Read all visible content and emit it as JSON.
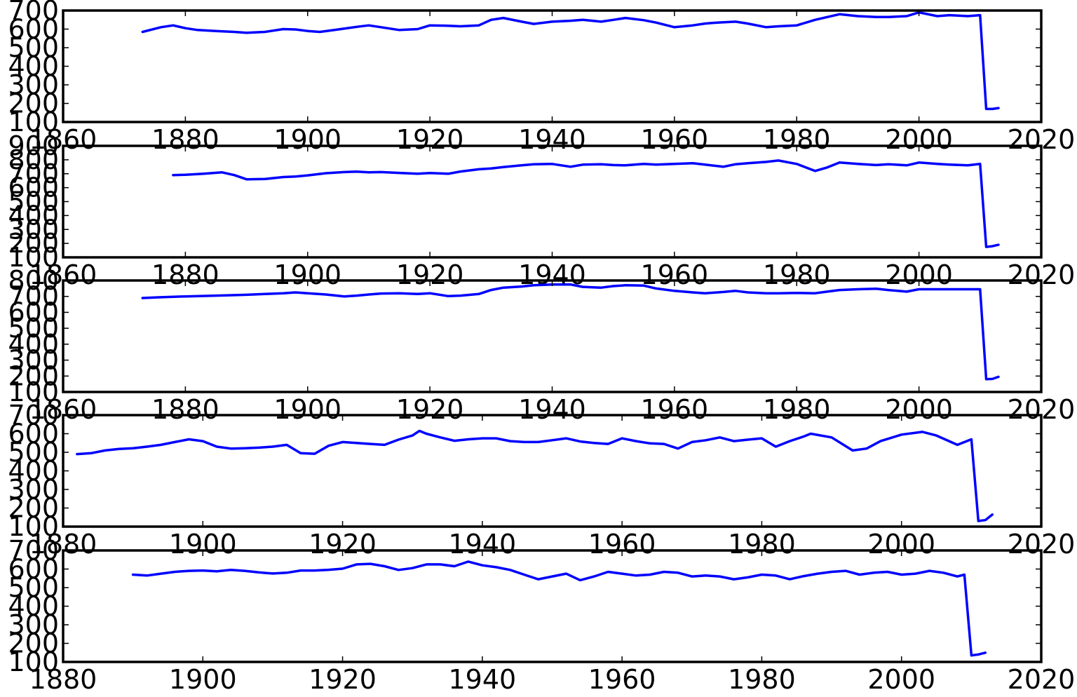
{
  "figure": {
    "background": "#ffffff"
  },
  "chart_data": [
    {
      "type": "line",
      "title": "",
      "xlabel": "",
      "ylabel": "",
      "xlim": [
        1860,
        2020
      ],
      "ylim": [
        100,
        700
      ],
      "xticks": [
        1860,
        1880,
        1900,
        1920,
        1940,
        1960,
        1980,
        2000,
        2020
      ],
      "yticks": [
        100,
        200,
        300,
        400,
        500,
        600,
        700
      ],
      "grid": false,
      "legend": "none",
      "color": "#0000ff",
      "series": [
        {
          "x": [
            1873,
            1876,
            1878,
            1880,
            1882,
            1885,
            1888,
            1890,
            1893,
            1896,
            1898,
            1900,
            1902,
            1905,
            1908,
            1910,
            1912,
            1915,
            1918,
            1920,
            1923,
            1925,
            1928,
            1930,
            1932,
            1935,
            1937,
            1940,
            1943,
            1945,
            1948,
            1950,
            1952,
            1955,
            1957,
            1960,
            1963,
            1965,
            1967,
            1970,
            1972,
            1975,
            1977,
            1980,
            1983,
            1985,
            1987,
            1990,
            1993,
            1995,
            1998,
            2000,
            2003,
            2005,
            2008,
            2010,
            2011,
            2012,
            2013
          ],
          "y": [
            585,
            610,
            620,
            605,
            595,
            590,
            585,
            580,
            585,
            600,
            598,
            590,
            585,
            598,
            612,
            620,
            610,
            595,
            600,
            620,
            618,
            615,
            620,
            650,
            660,
            640,
            628,
            640,
            645,
            650,
            640,
            650,
            660,
            648,
            635,
            610,
            620,
            630,
            635,
            640,
            630,
            610,
            615,
            620,
            650,
            665,
            680,
            670,
            665,
            665,
            670,
            690,
            670,
            675,
            670,
            675,
            170,
            170,
            175
          ]
        }
      ]
    },
    {
      "type": "line",
      "title": "",
      "xlabel": "",
      "ylabel": "",
      "xlim": [
        1860,
        2020
      ],
      "ylim": [
        100,
        900
      ],
      "xticks": [
        1860,
        1880,
        1900,
        1920,
        1940,
        1960,
        1980,
        2000,
        2020
      ],
      "yticks": [
        100,
        200,
        300,
        400,
        500,
        600,
        700,
        800,
        900
      ],
      "grid": false,
      "legend": "none",
      "color": "#0000ff",
      "series": [
        {
          "x": [
            1878,
            1880,
            1883,
            1886,
            1888,
            1890,
            1893,
            1896,
            1898,
            1900,
            1903,
            1906,
            1908,
            1910,
            1912,
            1915,
            1918,
            1920,
            1923,
            1925,
            1928,
            1930,
            1932,
            1935,
            1937,
            1940,
            1943,
            1945,
            1948,
            1950,
            1952,
            1955,
            1957,
            1960,
            1963,
            1965,
            1968,
            1970,
            1972,
            1975,
            1977,
            1980,
            1983,
            1985,
            1987,
            1990,
            1993,
            1995,
            1998,
            2000,
            2003,
            2005,
            2008,
            2010,
            2011,
            2012,
            2013
          ],
          "y": [
            690,
            692,
            700,
            710,
            690,
            660,
            662,
            676,
            680,
            688,
            704,
            712,
            715,
            710,
            712,
            706,
            700,
            705,
            700,
            716,
            732,
            738,
            748,
            760,
            768,
            770,
            750,
            765,
            768,
            762,
            760,
            770,
            765,
            770,
            775,
            765,
            750,
            768,
            775,
            785,
            795,
            770,
            720,
            745,
            780,
            770,
            762,
            768,
            760,
            780,
            770,
            765,
            760,
            770,
            175,
            180,
            190
          ]
        }
      ]
    },
    {
      "type": "line",
      "title": "",
      "xlabel": "",
      "ylabel": "",
      "xlim": [
        1860,
        2020
      ],
      "ylim": [
        100,
        800
      ],
      "xticks": [
        1860,
        1880,
        1900,
        1920,
        1940,
        1960,
        1980,
        2000,
        2020
      ],
      "yticks": [
        100,
        200,
        300,
        400,
        500,
        600,
        700,
        800
      ],
      "grid": false,
      "legend": "none",
      "color": "#0000ff",
      "series": [
        {
          "x": [
            1873,
            1876,
            1880,
            1885,
            1890,
            1893,
            1896,
            1898,
            1900,
            1903,
            1906,
            1908,
            1910,
            1912,
            1915,
            1918,
            1920,
            1923,
            1925,
            1928,
            1930,
            1932,
            1935,
            1937,
            1940,
            1943,
            1945,
            1948,
            1950,
            1952,
            1955,
            1957,
            1960,
            1963,
            1965,
            1968,
            1970,
            1972,
            1975,
            1977,
            1980,
            1983,
            1985,
            1987,
            1990,
            1993,
            1995,
            1998,
            2000,
            2003,
            2005,
            2008,
            2010,
            2011,
            2012,
            2013
          ],
          "y": [
            690,
            695,
            700,
            705,
            710,
            715,
            720,
            725,
            720,
            712,
            700,
            705,
            712,
            718,
            720,
            715,
            720,
            702,
            705,
            715,
            740,
            755,
            762,
            770,
            775,
            775,
            760,
            755,
            765,
            770,
            768,
            750,
            735,
            725,
            720,
            728,
            735,
            725,
            720,
            720,
            722,
            720,
            730,
            740,
            745,
            748,
            740,
            730,
            745,
            745,
            745,
            745,
            745,
            180,
            182,
            195
          ]
        }
      ]
    },
    {
      "type": "line",
      "title": "",
      "xlabel": "",
      "ylabel": "",
      "xlim": [
        1880,
        2020
      ],
      "ylim": [
        100,
        700
      ],
      "xticks": [
        1880,
        1900,
        1920,
        1940,
        1960,
        1980,
        2000,
        2020
      ],
      "yticks": [
        100,
        200,
        300,
        400,
        500,
        600,
        700
      ],
      "grid": false,
      "legend": "none",
      "color": "#0000ff",
      "series": [
        {
          "x": [
            1882,
            1884,
            1886,
            1888,
            1890,
            1892,
            1894,
            1896,
            1898,
            1900,
            1902,
            1904,
            1906,
            1908,
            1910,
            1912,
            1914,
            1916,
            1918,
            1920,
            1922,
            1924,
            1926,
            1928,
            1930,
            1931,
            1932,
            1934,
            1936,
            1938,
            1940,
            1942,
            1944,
            1946,
            1948,
            1950,
            1952,
            1954,
            1956,
            1958,
            1960,
            1962,
            1964,
            1966,
            1968,
            1970,
            1972,
            1974,
            1976,
            1978,
            1980,
            1982,
            1984,
            1986,
            1987,
            1990,
            1993,
            1995,
            1997,
            2000,
            2003,
            2005,
            2008,
            2010,
            2011,
            2012,
            2013
          ],
          "y": [
            490,
            495,
            510,
            518,
            522,
            530,
            540,
            555,
            570,
            560,
            530,
            520,
            522,
            525,
            530,
            540,
            495,
            492,
            535,
            555,
            550,
            545,
            540,
            568,
            590,
            615,
            600,
            580,
            562,
            570,
            575,
            575,
            560,
            555,
            555,
            565,
            575,
            558,
            550,
            545,
            575,
            560,
            548,
            545,
            520,
            555,
            565,
            580,
            560,
            568,
            575,
            530,
            560,
            585,
            600,
            580,
            510,
            520,
            560,
            595,
            610,
            590,
            540,
            570,
            130,
            135,
            165
          ]
        }
      ]
    },
    {
      "type": "line",
      "title": "",
      "xlabel": "",
      "ylabel": "",
      "xlim": [
        1880,
        2020
      ],
      "ylim": [
        100,
        700
      ],
      "xticks": [
        1880,
        1900,
        1920,
        1940,
        1960,
        1980,
        2000,
        2020
      ],
      "yticks": [
        100,
        200,
        300,
        400,
        500,
        600,
        700
      ],
      "grid": false,
      "legend": "none",
      "color": "#0000ff",
      "series": [
        {
          "x": [
            1890,
            1892,
            1894,
            1896,
            1898,
            1900,
            1902,
            1904,
            1906,
            1908,
            1910,
            1912,
            1914,
            1916,
            1918,
            1920,
            1922,
            1924,
            1926,
            1928,
            1930,
            1932,
            1934,
            1936,
            1938,
            1940,
            1942,
            1944,
            1946,
            1948,
            1950,
            1952,
            1954,
            1956,
            1958,
            1960,
            1962,
            1964,
            1966,
            1968,
            1970,
            1972,
            1974,
            1976,
            1978,
            1980,
            1982,
            1984,
            1986,
            1988,
            1990,
            1992,
            1994,
            1996,
            1998,
            2000,
            2002,
            2004,
            2006,
            2008,
            2009,
            2010,
            2011,
            2012
          ],
          "y": [
            570,
            565,
            575,
            585,
            590,
            592,
            588,
            595,
            590,
            582,
            576,
            580,
            592,
            592,
            596,
            602,
            625,
            628,
            615,
            595,
            605,
            625,
            625,
            615,
            640,
            620,
            610,
            595,
            570,
            545,
            560,
            575,
            540,
            560,
            585,
            575,
            565,
            570,
            585,
            580,
            560,
            565,
            560,
            545,
            555,
            570,
            565,
            545,
            562,
            575,
            585,
            590,
            570,
            580,
            585,
            570,
            575,
            590,
            580,
            560,
            570,
            135,
            140,
            150
          ]
        }
      ]
    }
  ]
}
